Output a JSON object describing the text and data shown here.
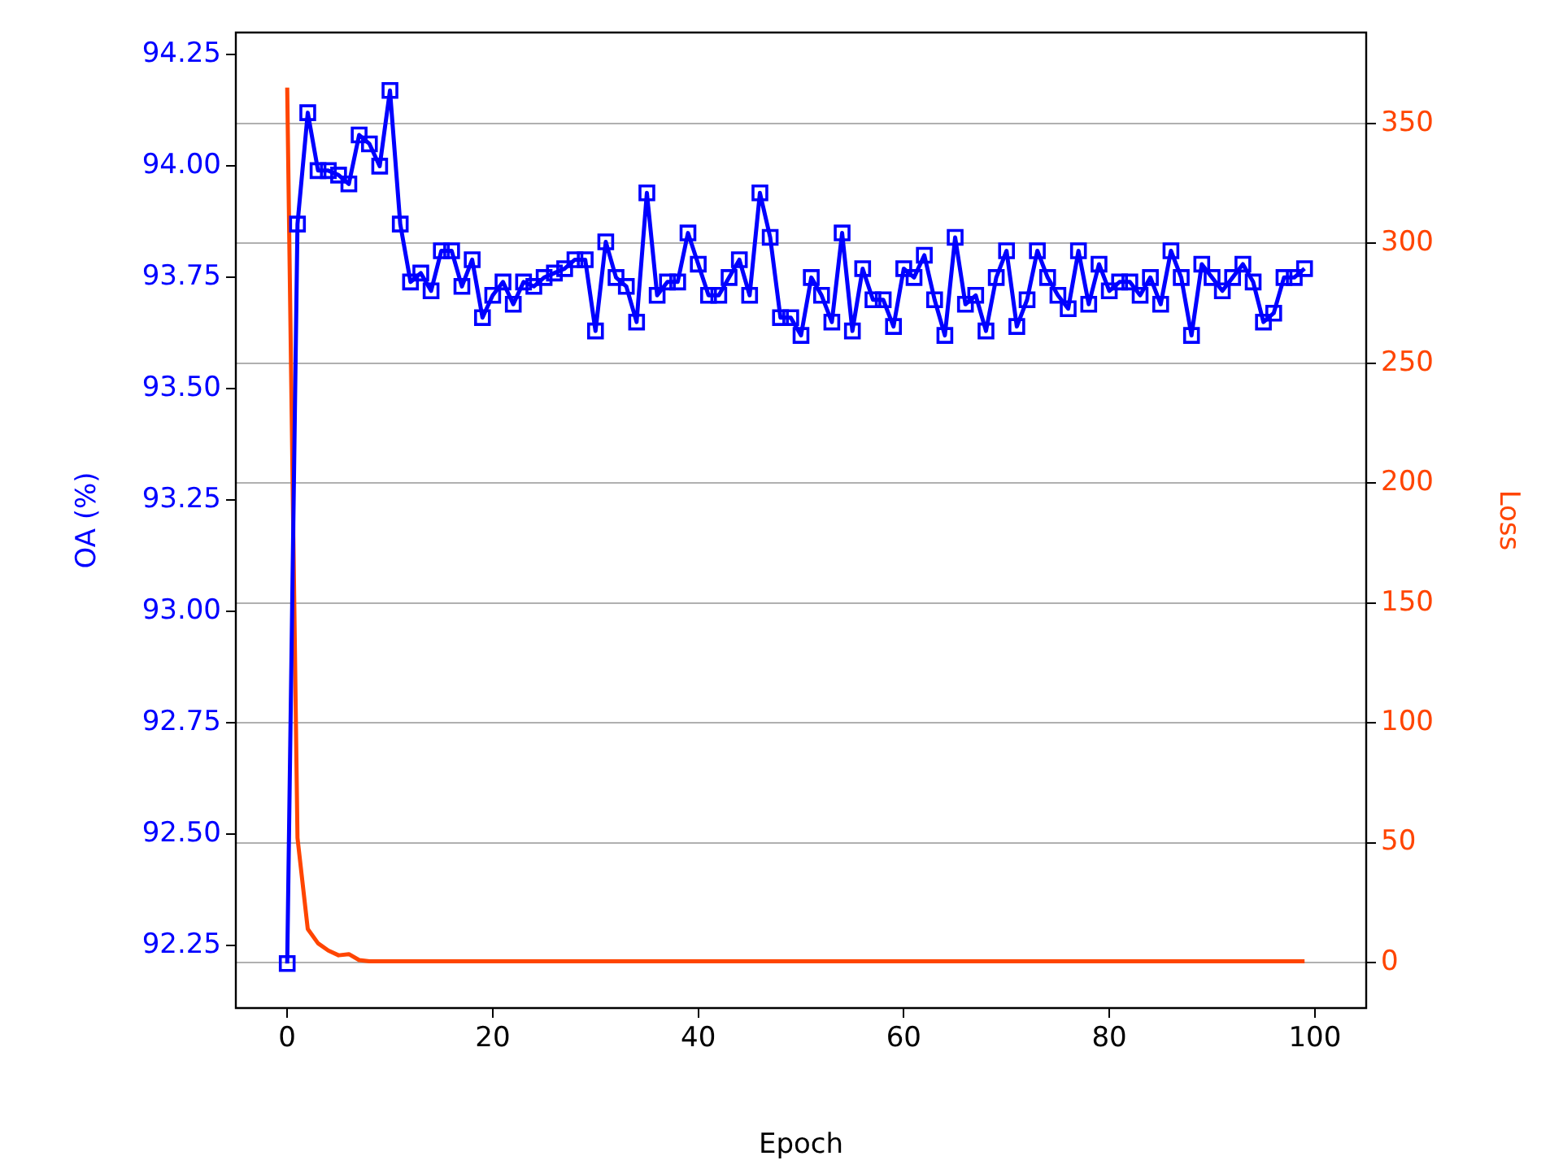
{
  "chart_data": {
    "type": "line",
    "xlabel": "Epoch",
    "ylabel": "OA (%)",
    "y2label": "Loss",
    "x": [
      0,
      1,
      2,
      3,
      4,
      5,
      6,
      7,
      8,
      9,
      10,
      11,
      12,
      13,
      14,
      15,
      16,
      17,
      18,
      19,
      20,
      21,
      22,
      23,
      24,
      25,
      26,
      27,
      28,
      29,
      30,
      31,
      32,
      33,
      34,
      35,
      36,
      37,
      38,
      39,
      40,
      41,
      42,
      43,
      44,
      45,
      46,
      47,
      48,
      49,
      50,
      51,
      52,
      53,
      54,
      55,
      56,
      57,
      58,
      59,
      60,
      61,
      62,
      63,
      64,
      65,
      66,
      67,
      68,
      69,
      70,
      71,
      72,
      73,
      74,
      75,
      76,
      77,
      78,
      79,
      80,
      81,
      82,
      83,
      84,
      85,
      86,
      87,
      88,
      89,
      90,
      91,
      92,
      93,
      94,
      95,
      96,
      97,
      98,
      99
    ],
    "series": [
      {
        "color": "#0000ff",
        "marker": "square",
        "values": [
          92.21,
          93.87,
          94.12,
          93.99,
          93.99,
          93.98,
          93.96,
          94.07,
          94.05,
          94.0,
          94.17,
          93.87,
          93.74,
          93.76,
          93.72,
          93.81,
          93.81,
          93.73,
          93.79,
          93.66,
          93.71,
          93.74,
          93.69,
          93.74,
          93.73,
          93.75,
          93.76,
          93.77,
          93.79,
          93.79,
          93.63,
          93.83,
          93.75,
          93.73,
          93.65,
          93.94,
          93.71,
          93.74,
          93.74,
          93.85,
          93.78,
          93.71,
          93.71,
          93.75,
          93.79,
          93.71,
          93.94,
          93.84,
          93.66,
          93.66,
          93.62,
          93.75,
          93.71,
          93.65,
          93.85,
          93.63,
          93.77,
          93.7,
          93.7,
          93.64,
          93.77,
          93.75,
          93.8,
          93.7,
          93.62,
          93.84,
          93.69,
          93.71,
          93.63,
          93.75,
          93.81,
          93.64,
          93.7,
          93.81,
          93.75,
          93.71,
          93.68,
          93.81,
          93.69,
          93.78,
          93.72,
          93.74,
          93.74,
          93.71,
          93.75,
          93.69,
          93.81,
          93.75,
          93.62,
          93.78,
          93.75,
          93.72,
          93.75,
          93.78,
          93.74,
          93.65,
          93.67,
          93.75,
          93.75,
          93.77
        ]
      },
      {
        "color": "#ff4500",
        "axis": "y2",
        "marker": "none",
        "values": [
          365,
          52,
          14,
          8,
          5,
          3,
          3.5,
          1,
          0.5,
          0.5,
          0.5,
          0.5,
          0.5,
          0.5,
          0.5,
          0.5,
          0.5,
          0.5,
          0.5,
          0.5,
          0.5,
          0.5,
          0.5,
          0.5,
          0.5,
          0.5,
          0.5,
          0.5,
          0.5,
          0.5,
          0.5,
          0.5,
          0.5,
          0.5,
          0.5,
          0.5,
          0.5,
          0.5,
          0.5,
          0.5,
          0.5,
          0.5,
          0.5,
          0.5,
          0.5,
          0.5,
          0.5,
          0.5,
          0.5,
          0.5,
          0.5,
          0.5,
          0.5,
          0.5,
          0.5,
          0.5,
          0.5,
          0.5,
          0.5,
          0.5,
          0.5,
          0.5,
          0.5,
          0.5,
          0.5,
          0.5,
          0.5,
          0.5,
          0.5,
          0.5,
          0.5,
          0.5,
          0.5,
          0.5,
          0.5,
          0.5,
          0.5,
          0.5,
          0.5,
          0.5,
          0.5,
          0.5,
          0.5,
          0.5,
          0.5,
          0.5,
          0.5,
          0.5,
          0.5,
          0.5,
          0.5,
          0.5,
          0.5,
          0.5,
          0.5,
          0.5,
          0.5,
          0.5,
          0.5,
          0.5
        ]
      }
    ],
    "xlim": [
      -5,
      105
    ],
    "xticks": [
      0,
      20,
      40,
      60,
      80,
      100
    ],
    "ylim": [
      92.11,
      94.3
    ],
    "yticks": [
      {
        "value": 92.25,
        "label": "92.25"
      },
      {
        "value": 92.5,
        "label": "92.50"
      },
      {
        "value": 92.75,
        "label": "92.75"
      },
      {
        "value": 93.0,
        "label": "93.00"
      },
      {
        "value": 93.25,
        "label": "93.25"
      },
      {
        "value": 93.5,
        "label": "93.50"
      },
      {
        "value": 93.75,
        "label": "93.75"
      },
      {
        "value": 94.0,
        "label": "94.00"
      },
      {
        "value": 94.25,
        "label": "94.25"
      }
    ],
    "y2lim": [
      -19,
      388
    ],
    "y2ticks": [
      0,
      50,
      100,
      150,
      200,
      250,
      300,
      350
    ],
    "grid": "y",
    "legend": false
  }
}
